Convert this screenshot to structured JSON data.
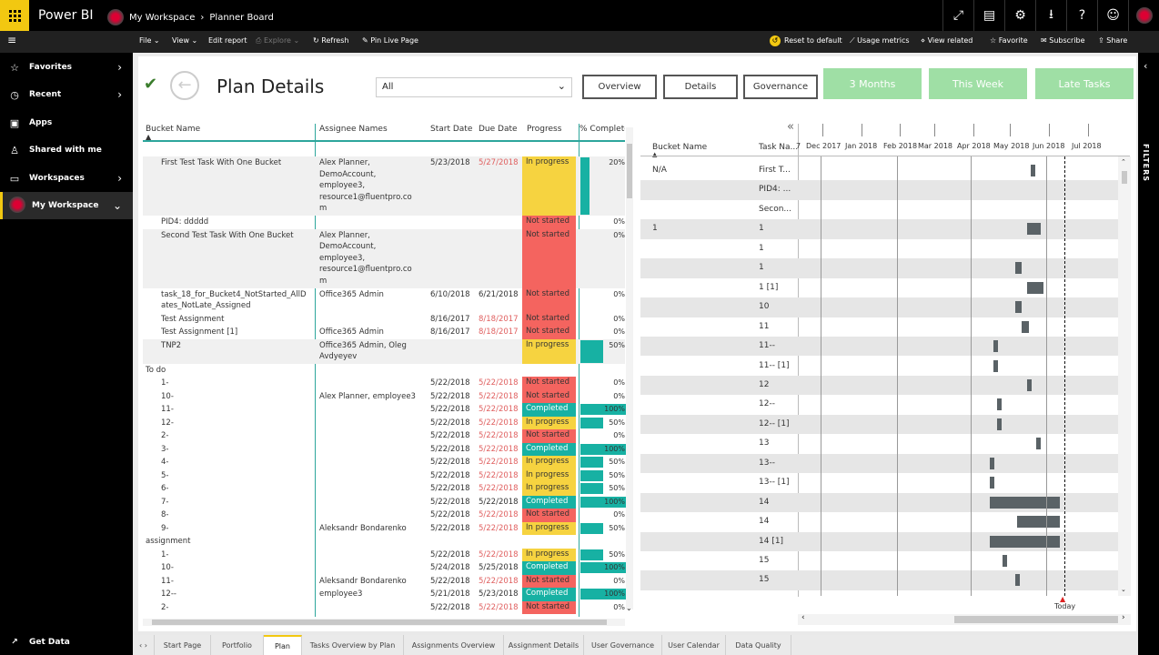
{
  "app": {
    "brand": "Power BI",
    "crumb1": "My Workspace",
    "crumb2": "Planner Board"
  },
  "toolbar": {
    "file": "File",
    "view": "View",
    "edit": "Edit report",
    "explore": "Explore",
    "refresh": "Refresh",
    "pin": "Pin Live Page",
    "reset": "Reset to default",
    "usage": "Usage metrics",
    "related": "View related",
    "favorite": "Favorite",
    "subscribe": "Subscribe",
    "share": "Share"
  },
  "sidebar": {
    "items": [
      {
        "label": "Favorites"
      },
      {
        "label": "Recent"
      },
      {
        "label": "Apps"
      },
      {
        "label": "Shared with me"
      },
      {
        "label": "Workspaces"
      },
      {
        "label": "My Workspace"
      }
    ],
    "get_data": "Get Data"
  },
  "filters_label": "FILTERS",
  "report": {
    "title": "Plan Details",
    "dropdown_value": "All",
    "nav": [
      "Overview",
      "Details",
      "Governance"
    ],
    "green": [
      "3 Months",
      "This Week",
      "Late Tasks"
    ]
  },
  "table": {
    "headers": [
      "Bucket Name",
      "Assignee Names",
      "Start Date",
      "Due Date",
      "Progress",
      "% Complete"
    ],
    "rows": [
      {
        "name": "First Test Task With One Bucket",
        "assignee": "Alex Planner,\nDemoAccount,\nemployee3,\nresource1@fluentpro.co\nm",
        "start": "5/23/2018",
        "due": "5/27/2018",
        "late": true,
        "progress": "In progress",
        "pct": "20%",
        "val": 0.2
      },
      {
        "name": "PID4: ddddd",
        "assignee": "",
        "start": "",
        "due": "",
        "late": false,
        "progress": "Not started",
        "pct": "0%",
        "val": 0
      },
      {
        "name": "Second Test Task With One Bucket",
        "assignee": "Alex Planner,\nDemoAccount,\nemployee3,\nresource1@fluentpro.co\nm",
        "start": "",
        "due": "",
        "late": false,
        "progress": "Not started",
        "pct": "0%",
        "val": 0
      },
      {
        "name": "task_18_for_Bucket4_NotStarted_AllD\nates_NotLate_Assigned",
        "assignee": "Office365 Admin",
        "start": "6/10/2018",
        "due": "6/21/2018",
        "late": false,
        "progress": "Not started",
        "pct": "0%",
        "val": 0
      },
      {
        "name": "Test Assignment",
        "assignee": "",
        "start": "8/16/2017",
        "due": "8/18/2017",
        "late": true,
        "progress": "Not started",
        "pct": "0%",
        "val": 0
      },
      {
        "name": "Test Assignment [1]",
        "assignee": "Office365 Admin",
        "start": "8/16/2017",
        "due": "8/18/2017",
        "late": true,
        "progress": "Not started",
        "pct": "0%",
        "val": 0
      },
      {
        "name": "TNP2",
        "assignee": "Office365 Admin, Oleg\nAvdyeyev",
        "start": "",
        "due": "",
        "late": false,
        "progress": "In progress",
        "pct": "50%",
        "val": 0.5
      },
      {
        "group": "To do"
      },
      {
        "name": "1-",
        "assignee": "",
        "start": "5/22/2018",
        "due": "5/22/2018",
        "late": true,
        "progress": "Not started",
        "pct": "0%",
        "val": 0
      },
      {
        "name": "10-",
        "assignee": "Alex Planner, employee3",
        "start": "5/22/2018",
        "due": "5/22/2018",
        "late": true,
        "progress": "Not started",
        "pct": "0%",
        "val": 0
      },
      {
        "name": "11-",
        "assignee": "",
        "start": "5/22/2018",
        "due": "5/22/2018",
        "late": true,
        "progress": "Completed",
        "pct": "100%",
        "val": 1
      },
      {
        "name": "12-",
        "assignee": "",
        "start": "5/22/2018",
        "due": "5/22/2018",
        "late": true,
        "progress": "In progress",
        "pct": "50%",
        "val": 0.5
      },
      {
        "name": "2-",
        "assignee": "",
        "start": "5/22/2018",
        "due": "5/22/2018",
        "late": true,
        "progress": "Not started",
        "pct": "0%",
        "val": 0
      },
      {
        "name": "3-",
        "assignee": "",
        "start": "5/22/2018",
        "due": "5/22/2018",
        "late": true,
        "progress": "Completed",
        "pct": "100%",
        "val": 1
      },
      {
        "name": "4-",
        "assignee": "",
        "start": "5/22/2018",
        "due": "5/22/2018",
        "late": true,
        "progress": "In progress",
        "pct": "50%",
        "val": 0.5
      },
      {
        "name": "5-",
        "assignee": "",
        "start": "5/22/2018",
        "due": "5/22/2018",
        "late": true,
        "progress": "In progress",
        "pct": "50%",
        "val": 0.5
      },
      {
        "name": "6-",
        "assignee": "",
        "start": "5/22/2018",
        "due": "5/22/2018",
        "late": true,
        "progress": "In progress",
        "pct": "50%",
        "val": 0.5
      },
      {
        "name": "7-",
        "assignee": "",
        "start": "5/22/2018",
        "due": "5/22/2018",
        "late": false,
        "progress": "Completed",
        "pct": "100%",
        "val": 1
      },
      {
        "name": "8-",
        "assignee": "",
        "start": "5/22/2018",
        "due": "5/22/2018",
        "late": true,
        "progress": "Not started",
        "pct": "0%",
        "val": 0
      },
      {
        "name": "9-",
        "assignee": "Aleksandr Bondarenko",
        "start": "5/22/2018",
        "due": "5/22/2018",
        "late": true,
        "progress": "In progress",
        "pct": "50%",
        "val": 0.5
      },
      {
        "group": "assignment"
      },
      {
        "name": "1-",
        "assignee": "",
        "start": "5/22/2018",
        "due": "5/22/2018",
        "late": true,
        "progress": "In progress",
        "pct": "50%",
        "val": 0.5
      },
      {
        "name": "10-",
        "assignee": "",
        "start": "5/24/2018",
        "due": "5/25/2018",
        "late": false,
        "progress": "Completed",
        "pct": "100%",
        "val": 1
      },
      {
        "name": "11-",
        "assignee": "Aleksandr Bondarenko",
        "start": "5/22/2018",
        "due": "5/22/2018",
        "late": true,
        "progress": "Not started",
        "pct": "0%",
        "val": 0
      },
      {
        "name": "12--",
        "assignee": "employee3",
        "start": "5/21/2018",
        "due": "5/23/2018",
        "late": false,
        "progress": "Completed",
        "pct": "100%",
        "val": 1
      },
      {
        "name": "2-",
        "assignee": "",
        "start": "5/22/2018",
        "due": "5/22/2018",
        "late": true,
        "progress": "Not started",
        "pct": "0%",
        "val": 0
      }
    ]
  },
  "gantt": {
    "hdr_bucket": "Bucket Name",
    "hdr_task": "Task Na...",
    "months": [
      "7",
      "Dec 2017",
      "Jan 2018",
      "Feb 2018",
      "Mar 2018",
      "Apr 2018",
      "May 2018",
      "Jun 2018",
      "Jul 2018"
    ],
    "today_label": "Today",
    "rows": [
      {
        "bucket": "N/A",
        "task": "First T...",
        "bar": [
          0.728,
          0.742
        ]
      },
      {
        "bucket": "",
        "task": "PID4: ...",
        "bar": null
      },
      {
        "bucket": "",
        "task": "Secon...",
        "bar": null
      },
      {
        "bucket": "1",
        "task": "1",
        "bar": [
          0.718,
          0.76
        ]
      },
      {
        "bucket": "",
        "task": "1",
        "bar": null
      },
      {
        "bucket": "",
        "task": "1",
        "bar": [
          0.68,
          0.7
        ]
      },
      {
        "bucket": "",
        "task": "1 [1]",
        "bar": [
          0.718,
          0.77
        ]
      },
      {
        "bucket": "",
        "task": "10",
        "bar": [
          0.68,
          0.7
        ]
      },
      {
        "bucket": "",
        "task": "11",
        "bar": [
          0.7,
          0.722
        ]
      },
      {
        "bucket": "",
        "task": "11--",
        "bar": [
          0.61,
          0.62
        ]
      },
      {
        "bucket": "",
        "task": "11-- [1]",
        "bar": [
          0.61,
          0.62
        ]
      },
      {
        "bucket": "",
        "task": "12",
        "bar": [
          0.718,
          0.726
        ]
      },
      {
        "bucket": "",
        "task": "12--",
        "bar": [
          0.622,
          0.635
        ]
      },
      {
        "bucket": "",
        "task": "12-- [1]",
        "bar": [
          0.622,
          0.635
        ]
      },
      {
        "bucket": "",
        "task": "13",
        "bar": [
          0.745,
          0.753
        ]
      },
      {
        "bucket": "",
        "task": "13--",
        "bar": [
          0.6,
          0.61
        ]
      },
      {
        "bucket": "",
        "task": "13-- [1]",
        "bar": [
          0.6,
          0.61
        ]
      },
      {
        "bucket": "",
        "task": "14",
        "bar": [
          0.6,
          0.82
        ]
      },
      {
        "bucket": "",
        "task": "14",
        "bar": [
          0.685,
          0.82
        ]
      },
      {
        "bucket": "",
        "task": "14 [1]",
        "bar": [
          0.6,
          0.82
        ]
      },
      {
        "bucket": "",
        "task": "15",
        "bar": [
          0.64,
          0.65
        ]
      },
      {
        "bucket": "",
        "task": "15",
        "bar": [
          0.68,
          0.69
        ]
      }
    ]
  },
  "tabs": [
    "Start Page",
    "Portfolio",
    "Plan",
    "Tasks Overview by Plan",
    "Assignments Overview",
    "Assignment Details",
    "User Governance",
    "User Calendar",
    "Data Quality"
  ],
  "active_tab": "Plan"
}
